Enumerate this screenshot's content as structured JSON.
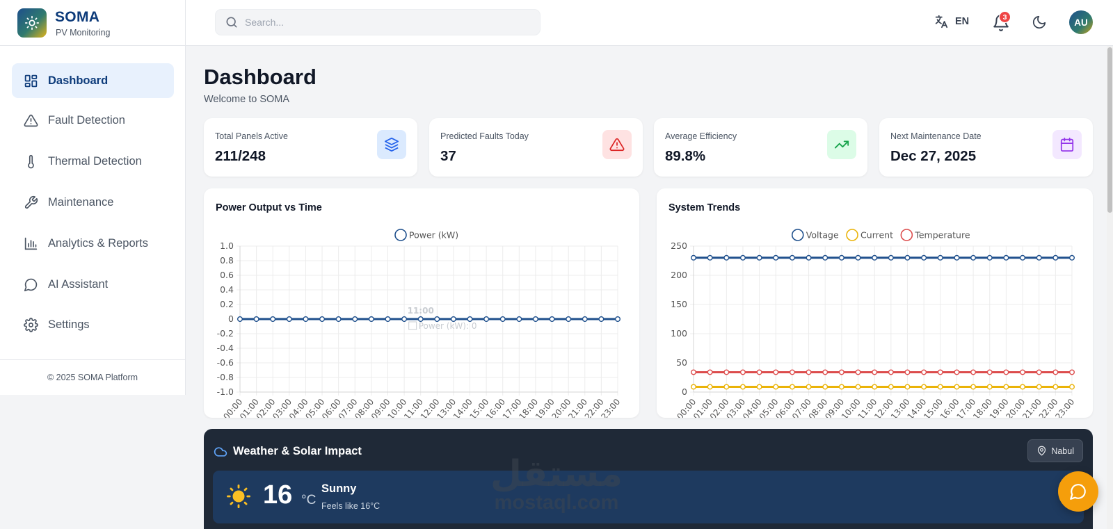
{
  "brand": {
    "name": "SOMA",
    "subtitle": "PV Monitoring"
  },
  "header": {
    "search_placeholder": "Search...",
    "language": "EN",
    "notification_count": "3",
    "user_initials": "AU"
  },
  "sidebar": {
    "items": [
      {
        "label": "Dashboard",
        "icon": "grid-icon",
        "active": true
      },
      {
        "label": "Fault Detection",
        "icon": "warning-icon"
      },
      {
        "label": "Thermal Detection",
        "icon": "thermometer-icon"
      },
      {
        "label": "Maintenance",
        "icon": "wrench-icon"
      },
      {
        "label": "Analytics & Reports",
        "icon": "bar-chart-icon"
      },
      {
        "label": "AI Assistant",
        "icon": "chat-icon"
      },
      {
        "label": "Settings",
        "icon": "gear-icon"
      }
    ],
    "footer": "© 2025 SOMA Platform"
  },
  "page": {
    "title": "Dashboard",
    "subtitle": "Welcome to SOMA"
  },
  "stats": [
    {
      "label": "Total Panels Active",
      "value": "211/248",
      "icon": "layers-icon",
      "color": "#2563eb",
      "bg": "#dbeafe"
    },
    {
      "label": "Predicted Faults Today",
      "value": "37",
      "icon": "alert-triangle-icon",
      "color": "#dc2626",
      "bg": "#fee2e2"
    },
    {
      "label": "Average Efficiency",
      "value": "89.8%",
      "icon": "trending-up-icon",
      "color": "#16a34a",
      "bg": "#dcfce7"
    },
    {
      "label": "Next Maintenance Date",
      "value": "Dec 27, 2025",
      "icon": "calendar-icon",
      "color": "#9333ea",
      "bg": "#f3e8ff"
    }
  ],
  "charts": {
    "power": {
      "title": "Power Output vs Time"
    },
    "trends": {
      "title": "System Trends"
    }
  },
  "tooltip": {
    "time": "11:00",
    "text": "Power (kW): 0"
  },
  "chart_data": [
    {
      "type": "line",
      "title": "Power Output vs Time",
      "x": [
        "00:00",
        "01:00",
        "02:00",
        "03:00",
        "04:00",
        "05:00",
        "06:00",
        "07:00",
        "08:00",
        "09:00",
        "10:00",
        "11:00",
        "12:00",
        "13:00",
        "14:00",
        "15:00",
        "16:00",
        "17:00",
        "18:00",
        "19:00",
        "20:00",
        "21:00",
        "22:00",
        "23:00"
      ],
      "series": [
        {
          "name": "Power (kW)",
          "color": "#1e4f8c",
          "values": [
            0,
            0,
            0,
            0,
            0,
            0,
            0,
            0,
            0,
            0,
            0,
            0,
            0,
            0,
            0,
            0,
            0,
            0,
            0,
            0,
            0,
            0,
            0,
            0
          ]
        }
      ],
      "ylim": [
        -1.0,
        1.0
      ],
      "yticks": [
        "1.0",
        "0.8",
        "0.6",
        "0.4",
        "0.2",
        "0",
        "-0.2",
        "-0.4",
        "-0.6",
        "-0.8",
        "-1.0"
      ],
      "legend": "top",
      "grid": true
    },
    {
      "type": "line",
      "title": "System Trends",
      "x": [
        "00:00",
        "01:00",
        "02:00",
        "03:00",
        "04:00",
        "05:00",
        "06:00",
        "07:00",
        "08:00",
        "09:00",
        "10:00",
        "11:00",
        "12:00",
        "13:00",
        "14:00",
        "15:00",
        "16:00",
        "17:00",
        "18:00",
        "19:00",
        "20:00",
        "21:00",
        "22:00",
        "23:00"
      ],
      "series": [
        {
          "name": "Voltage",
          "color": "#1e4f8c",
          "values": [
            230,
            230,
            230,
            230,
            230,
            230,
            230,
            230,
            230,
            230,
            230,
            230,
            230,
            230,
            230,
            230,
            230,
            230,
            230,
            230,
            230,
            230,
            230,
            230
          ]
        },
        {
          "name": "Current",
          "color": "#eab308",
          "values": [
            9,
            9,
            9,
            9,
            9,
            9,
            9,
            9,
            9,
            9,
            9,
            9,
            9,
            9,
            9,
            9,
            9,
            9,
            9,
            9,
            9,
            9,
            9,
            9
          ]
        },
        {
          "name": "Temperature",
          "color": "#dc4c4c",
          "values": [
            34,
            34,
            34,
            34,
            34,
            34,
            34,
            34,
            34,
            34,
            34,
            34,
            34,
            34,
            34,
            34,
            34,
            34,
            34,
            34,
            34,
            34,
            34,
            34
          ]
        }
      ],
      "ylim": [
        0,
        250
      ],
      "yticks": [
        "250",
        "200",
        "150",
        "100",
        "50",
        "0"
      ],
      "legend": "top",
      "grid": true
    }
  ],
  "weather": {
    "title": "Weather & Solar Impact",
    "location": "Nabul",
    "temperature": "16",
    "unit": "°C",
    "condition": "Sunny",
    "feels_like": "Feels like 16°C"
  },
  "watermark": {
    "arabic": "مستقل",
    "latin": "mostaql.com"
  }
}
